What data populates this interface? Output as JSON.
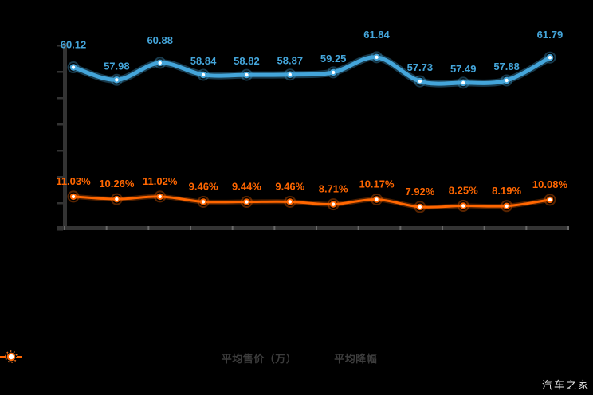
{
  "watermark": "汽车之家",
  "legend": [
    {
      "label": "平均售价（万）",
      "color": "#44a5da"
    },
    {
      "label": "平均降幅",
      "color": "#ff6600"
    }
  ],
  "chart_data": {
    "type": "line",
    "title": "",
    "xlabel": "",
    "ylabel": "",
    "x_axis_labels_visible": false,
    "y_axis_labels_visible": false,
    "grid": false,
    "legend_position": "bottom",
    "axis_color": "#333333",
    "series": [
      {
        "name": "平均售价（万）",
        "color": "#44a5da",
        "values": [
          60.12,
          57.98,
          60.88,
          58.84,
          58.82,
          58.87,
          59.25,
          61.84,
          57.73,
          57.49,
          57.88,
          61.79
        ],
        "labels": [
          "60.12",
          "57.98",
          "60.88",
          "58.84",
          "58.82",
          "58.87",
          "59.25",
          "61.84",
          "57.73",
          "57.49",
          "57.88",
          "61.79"
        ]
      },
      {
        "name": "平均降幅",
        "color": "#ff6600",
        "values": [
          11.03,
          10.26,
          11.02,
          9.46,
          9.44,
          9.46,
          8.71,
          10.17,
          7.92,
          8.25,
          8.19,
          10.08
        ],
        "labels": [
          "11.03%",
          "10.26%",
          "11.02%",
          "9.46%",
          "9.44%",
          "9.46%",
          "8.71%",
          "10.17%",
          "7.92%",
          "8.25%",
          "8.19%",
          "10.08%"
        ]
      }
    ]
  }
}
